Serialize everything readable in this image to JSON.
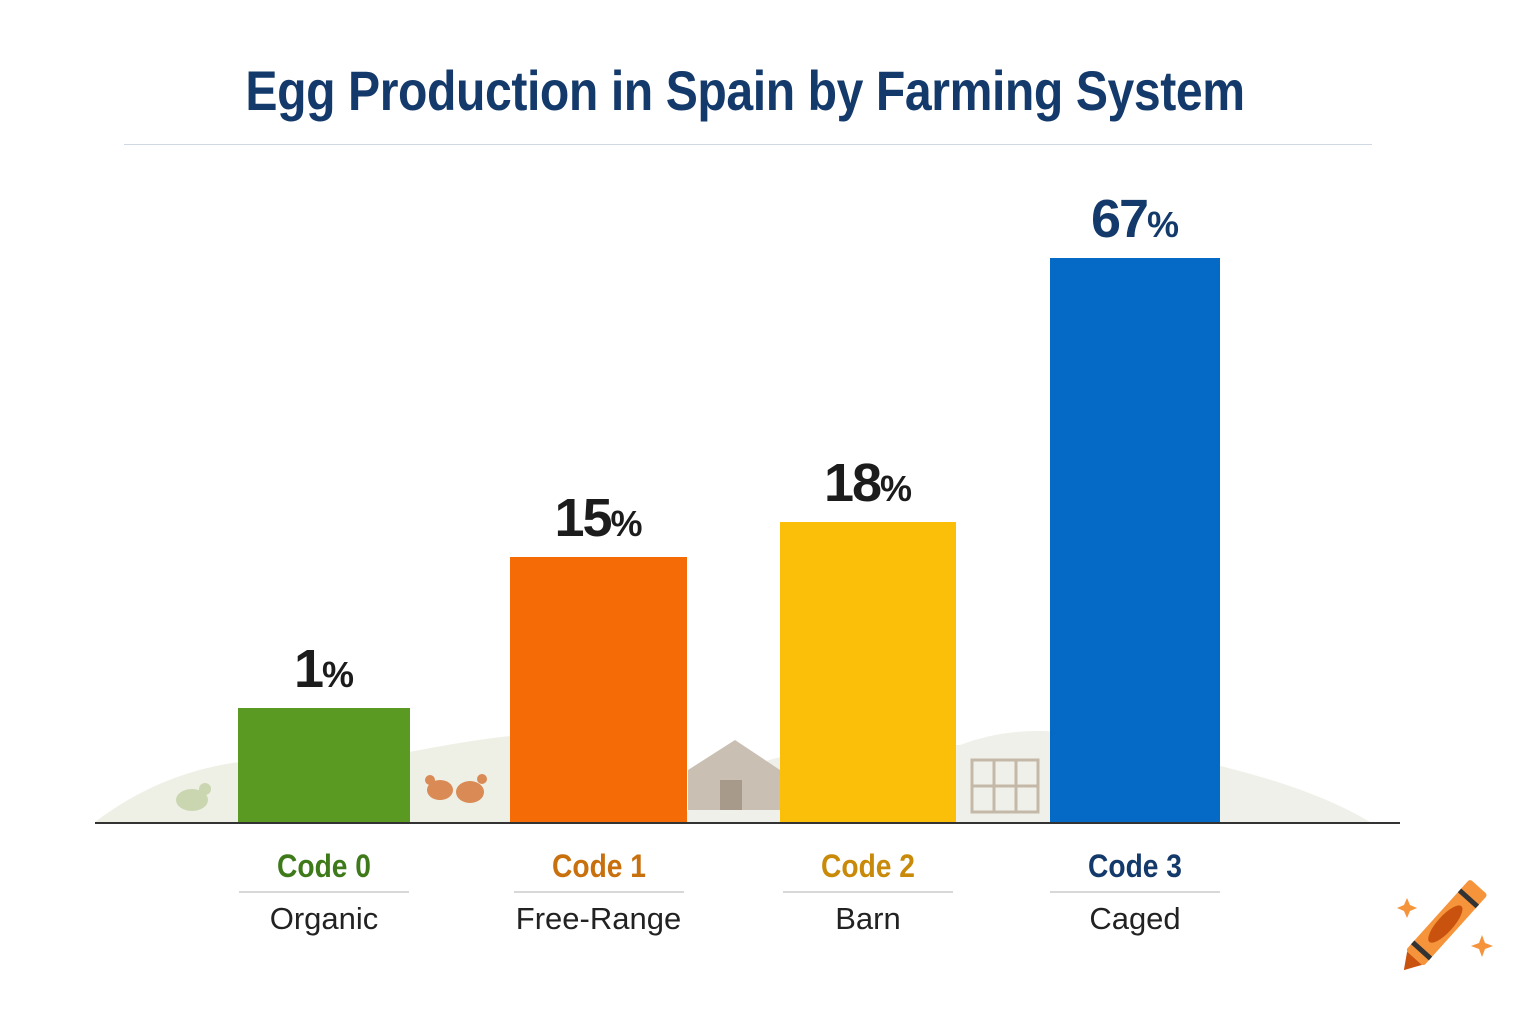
{
  "chart_data": {
    "type": "bar",
    "title": "Egg Production in Spain by Farming System",
    "categories": [
      "Code 0",
      "Code 1",
      "Code 2",
      "Code 3"
    ],
    "category_names": [
      "Organic",
      "Free-Range",
      "Barn",
      "Caged"
    ],
    "values": [
      1,
      15,
      18,
      67
    ],
    "value_labels": [
      "1",
      "15",
      "18",
      "67"
    ],
    "unit": "%",
    "colors": [
      "#5a9a22",
      "#f56b05",
      "#fbbf09",
      "#0569c6"
    ],
    "label_colors": [
      "#3f7a1a",
      "#c9700e",
      "#c98a0a",
      "#143a6b"
    ],
    "title_color": "#143a6b",
    "grid": false,
    "legend": "none"
  },
  "decorations": {
    "logo": "crayon-icon"
  }
}
